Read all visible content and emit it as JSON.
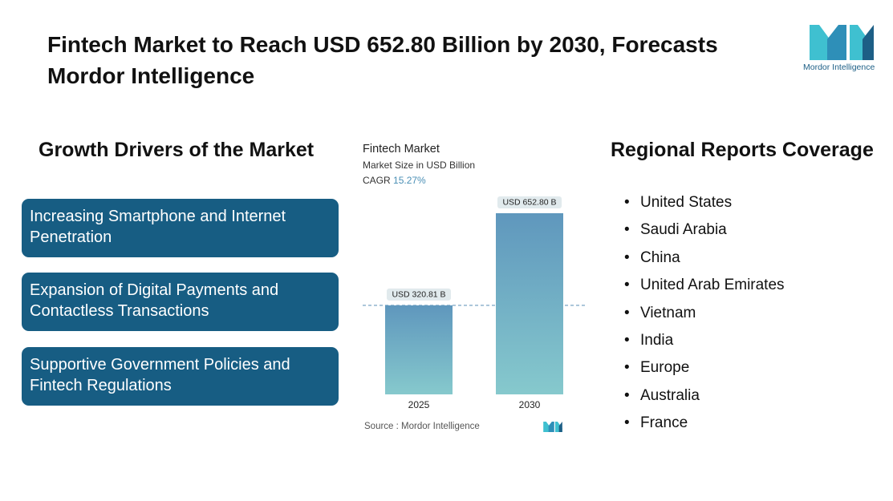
{
  "header": {
    "title": "Fintech Market to Reach USD 652.80 Billion by 2030, Forecasts Mordor Intelligence",
    "logo_text": "Mordor Intelligence"
  },
  "drivers": {
    "heading": "Growth Drivers of the Market",
    "items": [
      "Increasing Smartphone and Internet Penetration",
      "Expansion of Digital Payments and Contactless Transactions",
      "Supportive Government Policies and Fintech Regulations"
    ]
  },
  "chart_data": {
    "type": "bar",
    "title": "Fintech Market",
    "subtitle": "Market Size in USD Billion",
    "cagr_label": "CAGR",
    "cagr_value": "15.27%",
    "categories": [
      "2025",
      "2030"
    ],
    "values": [
      320.81,
      652.8
    ],
    "data_labels": [
      "USD 320.81 B",
      "USD 652.80 B"
    ],
    "ylim": [
      0,
      652.8
    ],
    "xlabel": "",
    "ylabel": "",
    "grid": false,
    "reference_line": "dashed line at 2025 value",
    "source": "Source :  Mordor Intelligence",
    "colors": {
      "bar_top": "#5f97bd",
      "bar_bottom": "#86c9cd",
      "label_bg": "#e1eaed",
      "dashed": "#6a9bbd"
    }
  },
  "regions": {
    "heading": "Regional Reports Coverage",
    "items": [
      "United States",
      "Saudi Arabia",
      "China",
      "United Arab Emirates",
      "Vietnam",
      "India",
      "Europe",
      "Australia",
      "France"
    ]
  },
  "colors": {
    "driver_box": "#175d83",
    "logo_teal": "#3fc0d0",
    "logo_blue": "#1d5f86"
  }
}
